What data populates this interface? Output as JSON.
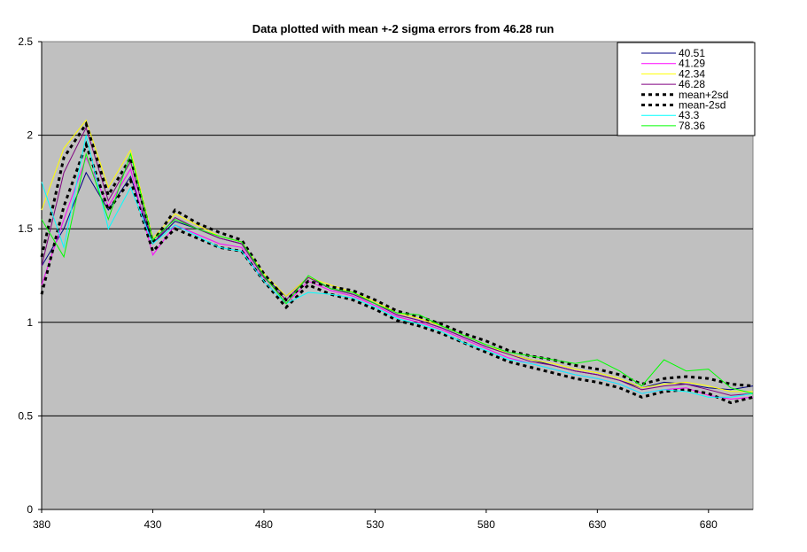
{
  "chart_data": {
    "type": "line",
    "title": "Data plotted with mean +-2 sigma errors from 46.28 run",
    "xlabel": "",
    "ylabel": "",
    "xlim": [
      380,
      700
    ],
    "ylim": [
      0,
      2.5
    ],
    "x_ticks": [
      380,
      430,
      480,
      530,
      580,
      630,
      680
    ],
    "y_ticks": [
      "0",
      "0.5",
      "1",
      "1.5",
      "2",
      "2.5"
    ],
    "grid": "horizontal",
    "legend_position": "top-right",
    "x": [
      380,
      390,
      400,
      410,
      420,
      430,
      440,
      450,
      460,
      470,
      480,
      490,
      500,
      510,
      520,
      530,
      540,
      550,
      560,
      570,
      580,
      590,
      600,
      610,
      620,
      630,
      640,
      650,
      660,
      670,
      680,
      690,
      700
    ],
    "series": [
      {
        "name": "40.51",
        "color": "#000080",
        "dash": false,
        "values": [
          1.3,
          1.5,
          1.8,
          1.6,
          1.78,
          1.42,
          1.54,
          1.5,
          1.45,
          1.42,
          1.24,
          1.14,
          1.24,
          1.18,
          1.15,
          1.1,
          1.04,
          1.01,
          0.97,
          0.92,
          0.87,
          0.83,
          0.8,
          0.77,
          0.74,
          0.72,
          0.69,
          0.65,
          0.68,
          0.67,
          0.65,
          0.64,
          0.66
        ]
      },
      {
        "name": "41.29",
        "color": "#ff00ff",
        "dash": false,
        "values": [
          1.2,
          1.55,
          1.88,
          1.62,
          1.82,
          1.36,
          1.52,
          1.47,
          1.42,
          1.4,
          1.22,
          1.1,
          1.22,
          1.17,
          1.14,
          1.09,
          1.03,
          1.0,
          0.96,
          0.91,
          0.86,
          0.81,
          0.78,
          0.75,
          0.72,
          0.7,
          0.67,
          0.62,
          0.64,
          0.65,
          0.61,
          0.59,
          0.6
        ]
      },
      {
        "name": "42.34",
        "color": "#ffff00",
        "dash": false,
        "values": [
          1.6,
          1.93,
          2.08,
          1.72,
          1.92,
          1.45,
          1.58,
          1.52,
          1.46,
          1.43,
          1.26,
          1.14,
          1.24,
          1.2,
          1.16,
          1.11,
          1.05,
          1.02,
          0.98,
          0.93,
          0.88,
          0.83,
          0.8,
          0.78,
          0.75,
          0.73,
          0.7,
          0.65,
          0.67,
          0.68,
          0.66,
          0.63,
          0.63
        ]
      },
      {
        "name": "46.28",
        "color": "#800080",
        "dash": false,
        "values": [
          1.3,
          1.8,
          2.04,
          1.65,
          1.86,
          1.42,
          1.56,
          1.5,
          1.45,
          1.42,
          1.24,
          1.12,
          1.24,
          1.18,
          1.15,
          1.1,
          1.04,
          1.01,
          0.97,
          0.92,
          0.87,
          0.83,
          0.79,
          0.77,
          0.74,
          0.72,
          0.69,
          0.64,
          0.66,
          0.67,
          0.64,
          0.61,
          0.62
        ]
      },
      {
        "name": "mean+2sd",
        "color": "#000000",
        "dash": true,
        "values": [
          1.35,
          1.88,
          2.06,
          1.68,
          1.88,
          1.43,
          1.6,
          1.53,
          1.48,
          1.44,
          1.26,
          1.12,
          1.22,
          1.19,
          1.17,
          1.12,
          1.06,
          1.03,
          0.99,
          0.94,
          0.9,
          0.85,
          0.82,
          0.8,
          0.77,
          0.75,
          0.72,
          0.67,
          0.7,
          0.71,
          0.7,
          0.67,
          0.66
        ]
      },
      {
        "name": "mean-2sd",
        "color": "#000000",
        "dash": true,
        "values": [
          1.15,
          1.62,
          1.95,
          1.6,
          1.76,
          1.38,
          1.5,
          1.45,
          1.4,
          1.38,
          1.22,
          1.08,
          1.2,
          1.15,
          1.12,
          1.07,
          1.01,
          0.98,
          0.94,
          0.89,
          0.84,
          0.79,
          0.76,
          0.73,
          0.7,
          0.68,
          0.65,
          0.6,
          0.63,
          0.64,
          0.62,
          0.57,
          0.6
        ]
      },
      {
        "name": "43.3",
        "color": "#00ffff",
        "dash": false,
        "values": [
          1.75,
          1.4,
          2.0,
          1.5,
          1.72,
          1.42,
          1.52,
          1.46,
          1.4,
          1.38,
          1.22,
          1.1,
          1.16,
          1.15,
          1.13,
          1.08,
          1.02,
          0.99,
          0.95,
          0.89,
          0.85,
          0.8,
          0.78,
          0.75,
          0.72,
          0.7,
          0.67,
          0.62,
          0.64,
          0.63,
          0.6,
          0.6,
          0.62
        ]
      },
      {
        "name": "78.36",
        "color": "#00ff00",
        "dash": false,
        "values": [
          1.55,
          1.35,
          1.9,
          1.55,
          1.9,
          1.44,
          1.55,
          1.5,
          1.46,
          1.43,
          1.25,
          1.1,
          1.25,
          1.18,
          1.16,
          1.1,
          1.05,
          1.04,
          0.98,
          0.93,
          0.88,
          0.84,
          0.82,
          0.8,
          0.78,
          0.8,
          0.74,
          0.66,
          0.8,
          0.74,
          0.75,
          0.65,
          0.62
        ]
      }
    ]
  }
}
